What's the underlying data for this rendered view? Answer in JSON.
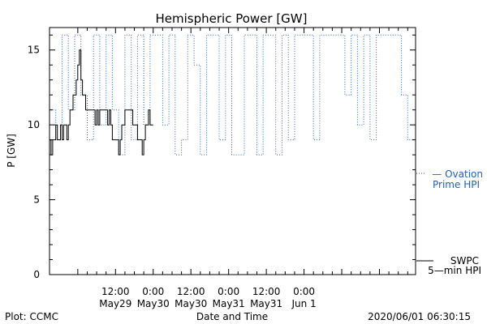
{
  "chart_data": {
    "type": "line",
    "title": "Hemispheric Power [GW]",
    "xlabel": "Date and Time",
    "ylabel": "P [GW]",
    "ylim": [
      0,
      16.5
    ],
    "y_ticks": [
      0,
      5,
      10,
      15
    ],
    "x_unit": "hours since 2020-05-29 00:00 UT",
    "xlim": [
      -9,
      107.5
    ],
    "x_ticks": [
      {
        "x": 12,
        "top": "12:00",
        "bottom": "May29"
      },
      {
        "x": 24,
        "top": "0:00",
        "bottom": "May30"
      },
      {
        "x": 36,
        "top": "12:00",
        "bottom": "May30"
      },
      {
        "x": 48,
        "top": "0:00",
        "bottom": "May31"
      },
      {
        "x": 60,
        "top": "12:00",
        "bottom": "May31"
      },
      {
        "x": 72,
        "top": "0:00",
        "bottom": "Jun 1"
      }
    ],
    "grid": false,
    "series": [
      {
        "name": "SWPC 5-min HPI",
        "color": "#000000",
        "style": "solid",
        "x": [
          -9,
          -8.5,
          -8,
          -7.5,
          -7,
          -6.5,
          -6,
          -5.5,
          -5,
          -4.5,
          -4,
          -3.5,
          -3,
          -2.5,
          -2,
          -1.5,
          -1,
          -0.5,
          0,
          0.5,
          1,
          1.5,
          2,
          2.5,
          3,
          3.5,
          4,
          4.5,
          5,
          5.5,
          6,
          6.5,
          7,
          7.5,
          8,
          8.5,
          9,
          9.5,
          10,
          10.5,
          11,
          11.5,
          12,
          12.5,
          13,
          13.5,
          14,
          14.5,
          15,
          15.5,
          16,
          16.5,
          17,
          17.5,
          18,
          18.5,
          19,
          19.5,
          20,
          20.5,
          21,
          21.5,
          22,
          22.5,
          23,
          23.5,
          24
        ],
        "values": [
          8,
          9,
          8,
          9,
          9,
          10,
          9,
          9,
          10,
          9,
          10,
          10,
          9,
          10,
          11,
          11,
          12,
          12,
          13,
          14,
          15,
          13,
          12,
          12,
          11,
          11,
          11,
          11,
          11,
          11,
          10,
          11,
          10,
          11,
          11,
          11,
          11,
          11,
          10,
          11,
          10,
          9,
          9,
          9,
          9,
          8,
          9,
          10,
          10,
          11,
          11,
          11,
          11,
          11,
          10,
          10,
          10,
          9,
          9,
          9,
          8,
          9,
          10,
          10,
          11,
          10,
          10
        ]
      },
      {
        "name": "Ovation Prime HPI",
        "color": "#1f5fbf",
        "style": "dotted",
        "x": [
          -9,
          -7,
          -5,
          -3,
          -1,
          1,
          3,
          5,
          7,
          9,
          11,
          13,
          15,
          17,
          19,
          21,
          23,
          25,
          27,
          29,
          31,
          33,
          35,
          37,
          39,
          41,
          43,
          45,
          47,
          49,
          51,
          53,
          55,
          57,
          59,
          61,
          63,
          65,
          67,
          69,
          71,
          73,
          75,
          77,
          79,
          81,
          83,
          85,
          87,
          89,
          91,
          93,
          95,
          97,
          99,
          101,
          103,
          105,
          107
        ],
        "values": [
          8,
          11,
          9,
          16,
          11,
          16,
          12,
          9,
          16,
          10,
          16,
          11,
          8,
          16,
          9,
          16,
          10,
          16,
          16,
          10,
          16,
          8,
          9,
          16,
          14,
          8,
          16,
          16,
          9,
          16,
          8,
          8,
          16,
          16,
          8,
          16,
          16,
          8,
          16,
          9,
          16,
          16,
          16,
          9,
          16,
          16,
          16,
          16,
          12,
          16,
          10,
          16,
          9,
          16,
          16,
          16,
          16,
          12,
          9
        ]
      }
    ],
    "legend": {
      "placement": "right"
    }
  },
  "legend": {
    "ovation_line1": "— Ovation",
    "ovation_line2": "Prime HPI",
    "swpc_line1": "SWPC",
    "swpc_line2": "5—min HPI"
  },
  "footer": {
    "left": "Plot: CCMC",
    "right": "2020/06/01 06:30:15"
  }
}
